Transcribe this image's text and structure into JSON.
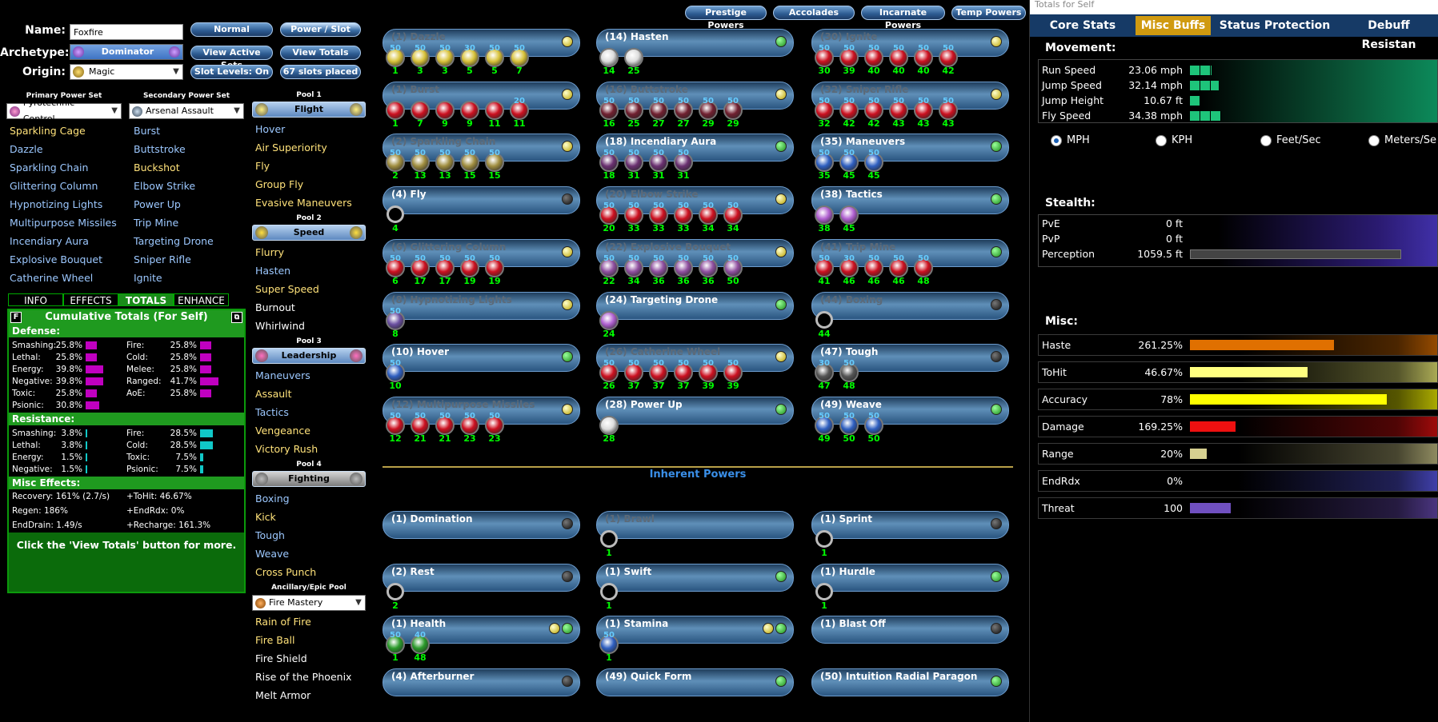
{
  "header": {
    "name_label": "Name:",
    "name_value": "Foxfire",
    "archetype_label": "Archetype:",
    "archetype": "Dominator",
    "origin_label": "Origin:",
    "origin": "Magic"
  },
  "buttons": {
    "normal": "Normal",
    "power_slot": "Power / Slot",
    "view_active_sets": "View Active Sets",
    "view_totals": "View Totals",
    "slot_levels": "Slot Levels: On",
    "slots_placed": "67 slots placed"
  },
  "top_tabs": [
    "Prestige Powers",
    "Accolades",
    "Incarnate Powers",
    "Temp Powers"
  ],
  "primary": {
    "label": "Primary Power Set",
    "value": "Pyrotechnic Control",
    "items": [
      {
        "t": "Sparkling Cage",
        "c": "yel"
      },
      {
        "t": "Dazzle",
        "c": "blue"
      },
      {
        "t": "Sparkling Chain",
        "c": "blue"
      },
      {
        "t": "Glittering Column",
        "c": "blue"
      },
      {
        "t": "Hypnotizing Lights",
        "c": "blue"
      },
      {
        "t": "Multipurpose Missiles",
        "c": "blue"
      },
      {
        "t": "Incendiary Aura",
        "c": "blue"
      },
      {
        "t": "Explosive Bouquet",
        "c": "blue"
      },
      {
        "t": "Catherine Wheel",
        "c": "blue"
      }
    ]
  },
  "secondary": {
    "label": "Secondary Power Set",
    "value": "Arsenal Assault",
    "items": [
      {
        "t": "Burst",
        "c": "blue"
      },
      {
        "t": "Buttstroke",
        "c": "blue"
      },
      {
        "t": "Buckshot",
        "c": "yel"
      },
      {
        "t": "Elbow Strike",
        "c": "blue"
      },
      {
        "t": "Power Up",
        "c": "blue"
      },
      {
        "t": "Trip Mine",
        "c": "blue"
      },
      {
        "t": "Targeting Drone",
        "c": "blue"
      },
      {
        "t": "Sniper Rifle",
        "c": "blue"
      },
      {
        "t": "Ignite",
        "c": "blue"
      }
    ]
  },
  "pools": [
    {
      "label": "Pool 1",
      "name": "Flight",
      "items": [
        {
          "t": "Hover",
          "c": "blue"
        },
        {
          "t": "Air Superiority",
          "c": "yel"
        },
        {
          "t": "Fly",
          "c": "yel"
        },
        {
          "t": "Group Fly",
          "c": "yel"
        },
        {
          "t": "Evasive Maneuvers",
          "c": "yel"
        }
      ]
    },
    {
      "label": "Pool 2",
      "name": "Speed",
      "items": [
        {
          "t": "Flurry",
          "c": "yel"
        },
        {
          "t": "Hasten",
          "c": "blue"
        },
        {
          "t": "Super Speed",
          "c": "yel"
        },
        {
          "t": "Burnout",
          "c": "wht"
        },
        {
          "t": "Whirlwind",
          "c": "wht"
        }
      ]
    },
    {
      "label": "Pool 3",
      "name": "Leadership",
      "items": [
        {
          "t": "Maneuvers",
          "c": "blue"
        },
        {
          "t": "Assault",
          "c": "yel"
        },
        {
          "t": "Tactics",
          "c": "blue"
        },
        {
          "t": "Vengeance",
          "c": "yel"
        },
        {
          "t": "Victory Rush",
          "c": "yel"
        }
      ]
    },
    {
      "label": "Pool 4",
      "name": "Fighting",
      "items": [
        {
          "t": "Boxing",
          "c": "blue"
        },
        {
          "t": "Kick",
          "c": "yel"
        },
        {
          "t": "Tough",
          "c": "blue"
        },
        {
          "t": "Weave",
          "c": "blue"
        },
        {
          "t": "Cross Punch",
          "c": "yel"
        }
      ]
    }
  ],
  "epic": {
    "label": "Ancillary/Epic Pool",
    "value": "Fire Mastery",
    "items": [
      {
        "t": "Rain of Fire",
        "c": "yel"
      },
      {
        "t": "Fire Ball",
        "c": "yel"
      },
      {
        "t": "Fire Shield",
        "c": "wht"
      },
      {
        "t": "Rise of the Phoenix",
        "c": "wht"
      },
      {
        "t": "Melt Armor",
        "c": "wht"
      }
    ]
  },
  "info_tabs": [
    "INFO",
    "EFFECTS",
    "TOTALS",
    "ENHANCE"
  ],
  "totals": {
    "f": "F",
    "title": "Cumulative Totals (For Self)",
    "defense_label": "Defense:",
    "resistance_label": "Resistance:",
    "misc_label": "Misc Effects:",
    "defense": [
      [
        "Smashing:",
        "25.8%",
        0.32
      ],
      [
        "Fire:",
        "25.8%",
        0.32
      ],
      [
        "Lethal:",
        "25.8%",
        0.32
      ],
      [
        "Cold:",
        "25.8%",
        0.32
      ],
      [
        "Energy:",
        "39.8%",
        0.5
      ],
      [
        "Melee:",
        "25.8%",
        0.32
      ],
      [
        "Negative:",
        "39.8%",
        0.5
      ],
      [
        "Ranged:",
        "41.7%",
        0.52
      ],
      [
        "Toxic:",
        "25.8%",
        0.32
      ],
      [
        "AoE:",
        "25.8%",
        0.32
      ],
      [
        "Psionic:",
        "30.8%",
        0.38
      ]
    ],
    "resistance": [
      [
        "Smashing:",
        "3.8%",
        0.04
      ],
      [
        "Fire:",
        "28.5%",
        0.36
      ],
      [
        "Lethal:",
        "3.8%",
        0.04
      ],
      [
        "Cold:",
        "28.5%",
        0.36
      ],
      [
        "Energy:",
        "1.5%",
        0.02
      ],
      [
        "Toxic:",
        "7.5%",
        0.09
      ],
      [
        "Negative:",
        "1.5%",
        0.02
      ],
      [
        "Psionic:",
        "7.5%",
        0.09
      ]
    ],
    "misc": [
      "Recovery: 161% (2.7/s)",
      "+ToHit: 46.67%",
      "Regen: 186%",
      "+EndRdx: 0%",
      "EndDrain: 1.49/s",
      "+Recharge: 161.3%"
    ],
    "footer": "Click the 'View Totals' button for more."
  },
  "inherent_title": "Inherent Powers",
  "slots": [
    {
      "n": "(1) Dazzle",
      "d": "y",
      "dim": true,
      "c": "#d8c23a",
      "e": [
        [
          "50",
          "1"
        ],
        [
          "50",
          "3"
        ],
        [
          "50",
          "3"
        ],
        [
          "30",
          "5"
        ],
        [
          "50",
          "5"
        ],
        [
          "50",
          "7"
        ]
      ]
    },
    {
      "n": "(1) Burst",
      "d": "y",
      "dim": true,
      "c": "#cc1020",
      "e": [
        [
          "",
          "1"
        ],
        [
          "",
          "7"
        ],
        [
          "",
          "9"
        ],
        [
          "",
          "9"
        ],
        [
          "",
          "11"
        ],
        [
          "20",
          "11"
        ]
      ]
    },
    {
      "n": "(2) Sparkling Chain",
      "d": "y",
      "dim": true,
      "c": "#a08e40",
      "e": [
        [
          "50",
          "2"
        ],
        [
          "50",
          "13"
        ],
        [
          "50",
          "13"
        ],
        [
          "50",
          "15"
        ],
        [
          "50",
          "15"
        ]
      ]
    },
    {
      "n": "(4) Fly",
      "d": "b",
      "dim": false,
      "c": "ring",
      "e": [
        [
          "",
          "4"
        ]
      ]
    },
    {
      "n": "(6) Glittering Column",
      "d": "y",
      "dim": true,
      "c": "#cc1020",
      "e": [
        [
          "50",
          "6"
        ],
        [
          "50",
          "17"
        ],
        [
          "50",
          "17"
        ],
        [
          "50",
          "19"
        ],
        [
          "50",
          "19"
        ]
      ]
    },
    {
      "n": "(8) Hypnotizing Lights",
      "d": "y",
      "dim": true,
      "c": "#6a4fa0",
      "e": [
        [
          "50",
          "8"
        ]
      ]
    },
    {
      "n": "(10) Hover",
      "d": "g",
      "dim": false,
      "c": "#2f5fc0",
      "e": [
        [
          "50",
          "10"
        ]
      ]
    },
    {
      "n": "(12) Multipurpose Missiles",
      "d": "y",
      "dim": true,
      "c": "#cc1020",
      "e": [
        [
          "50",
          "12"
        ],
        [
          "50",
          "21"
        ],
        [
          "50",
          "21"
        ],
        [
          "50",
          "23"
        ],
        [
          "50",
          "23"
        ]
      ]
    },
    {
      "n": "(14) Hasten",
      "d": "g",
      "dim": false,
      "c": "#ddd",
      "e": [
        [
          "",
          "14"
        ],
        [
          "",
          "25"
        ]
      ]
    },
    {
      "n": "(16) Buttstroke",
      "d": "y",
      "dim": true,
      "c": "#702030",
      "e": [
        [
          "50",
          "16"
        ],
        [
          "50",
          "25"
        ],
        [
          "50",
          "27"
        ],
        [
          "50",
          "27"
        ],
        [
          "50",
          "29"
        ],
        [
          "50",
          "29"
        ]
      ]
    },
    {
      "n": "(18) Incendiary Aura",
      "d": "g",
      "dim": false,
      "c": "#6a3070",
      "e": [
        [
          "50",
          "18"
        ],
        [
          "50",
          "31"
        ],
        [
          "50",
          "31"
        ],
        [
          "50",
          "31"
        ]
      ]
    },
    {
      "n": "(20) Elbow Strike",
      "d": "y",
      "dim": true,
      "c": "#cc1020",
      "e": [
        [
          "50",
          "20"
        ],
        [
          "50",
          "33"
        ],
        [
          "50",
          "33"
        ],
        [
          "50",
          "33"
        ],
        [
          "50",
          "34"
        ],
        [
          "50",
          "34"
        ]
      ]
    },
    {
      "n": "(22) Explosive Bouquet",
      "d": "y",
      "dim": true,
      "c": "#9050a0",
      "e": [
        [
          "50",
          "22"
        ],
        [
          "50",
          "34"
        ],
        [
          "50",
          "36"
        ],
        [
          "50",
          "36"
        ],
        [
          "50",
          "36"
        ],
        [
          "50",
          "50"
        ]
      ]
    },
    {
      "n": "(24) Targeting Drone",
      "d": "g",
      "dim": false,
      "c": "#b060d0",
      "e": [
        [
          "",
          "24"
        ]
      ]
    },
    {
      "n": "(26) Catherine Wheel",
      "d": "y",
      "dim": true,
      "c": "#cc1020",
      "e": [
        [
          "50",
          "26"
        ],
        [
          "50",
          "37"
        ],
        [
          "50",
          "37"
        ],
        [
          "50",
          "37"
        ],
        [
          "50",
          "39"
        ],
        [
          "50",
          "39"
        ]
      ]
    },
    {
      "n": "(28) Power Up",
      "d": "g",
      "dim": false,
      "c": "#ddd",
      "e": [
        [
          "",
          "28"
        ]
      ]
    },
    {
      "n": "(30) Ignite",
      "d": "y",
      "dim": true,
      "c": "#cc1020",
      "e": [
        [
          "50",
          "30"
        ],
        [
          "50",
          "39"
        ],
        [
          "50",
          "40"
        ],
        [
          "50",
          "40"
        ],
        [
          "50",
          "40"
        ],
        [
          "50",
          "42"
        ]
      ]
    },
    {
      "n": "(32) Sniper Rifle",
      "d": "y",
      "dim": true,
      "c": "#cc1020",
      "e": [
        [
          "50",
          "32"
        ],
        [
          "50",
          "42"
        ],
        [
          "50",
          "42"
        ],
        [
          "50",
          "43"
        ],
        [
          "50",
          "43"
        ],
        [
          "50",
          "43"
        ]
      ]
    },
    {
      "n": "(35) Maneuvers",
      "d": "g",
      "dim": false,
      "c": "#2f5fc0",
      "e": [
        [
          "50",
          "35"
        ],
        [
          "50",
          "45"
        ],
        [
          "50",
          "45"
        ]
      ]
    },
    {
      "n": "(38) Tactics",
      "d": "g",
      "dim": false,
      "c": "#b060d0",
      "e": [
        [
          "",
          "38"
        ],
        [
          "",
          "45"
        ]
      ]
    },
    {
      "n": "(41) Trip Mine",
      "d": "g",
      "dim": true,
      "c": "#cc1020",
      "e": [
        [
          "50",
          "41"
        ],
        [
          "30",
          "46"
        ],
        [
          "50",
          "46"
        ],
        [
          "50",
          "46"
        ],
        [
          "50",
          "48"
        ]
      ]
    },
    {
      "n": "(44) Boxing",
      "d": "b",
      "dim": true,
      "c": "ring",
      "e": [
        [
          "",
          "44"
        ]
      ]
    },
    {
      "n": "(47) Tough",
      "d": "b",
      "dim": false,
      "c": "#555",
      "e": [
        [
          "30",
          "47"
        ],
        [
          "50",
          "48"
        ]
      ]
    },
    {
      "n": "(49) Weave",
      "d": "g",
      "dim": false,
      "c": "#2f5fc0",
      "e": [
        [
          "50",
          "49"
        ],
        [
          "50",
          "50"
        ],
        [
          "50",
          "50"
        ]
      ]
    }
  ],
  "inherent": [
    {
      "n": "(1) Domination",
      "d": "b",
      "e": []
    },
    {
      "n": "(2) Rest",
      "d": "b",
      "e": [
        [
          "",
          "2"
        ]
      ]
    },
    {
      "n": "(1) Health",
      "d": "yg",
      "e": [
        [
          "50",
          "1"
        ],
        [
          "40",
          "48"
        ]
      ]
    },
    {
      "n": "(4) Afterburner",
      "d": "b",
      "e": []
    },
    {
      "n": "(1) Brawl",
      "d": "none",
      "dim": true,
      "e": [
        [
          "",
          "1"
        ]
      ]
    },
    {
      "n": "(1) Swift",
      "d": "g",
      "e": [
        [
          "",
          "1"
        ]
      ]
    },
    {
      "n": "(1) Stamina",
      "d": "yg",
      "e": [
        [
          "50",
          "1"
        ]
      ]
    },
    {
      "n": "(49) Quick Form",
      "d": "g",
      "e": []
    },
    {
      "n": "(1) Sprint",
      "d": "b",
      "e": [
        [
          "",
          "1"
        ]
      ]
    },
    {
      "n": "(1) Hurdle",
      "d": "g",
      "e": [
        [
          "",
          "1"
        ]
      ]
    },
    {
      "n": "(1) Blast Off",
      "d": "b",
      "e": []
    },
    {
      "n": "(50) Intuition Radial Paragon",
      "d": "g",
      "e": []
    }
  ],
  "right": {
    "window_title": "Totals for Self",
    "tabs": [
      "Core Stats",
      "Misc Buffs",
      "Status Protection",
      "Debuff Resistan"
    ],
    "movement_label": "Movement:",
    "movement": [
      [
        "Run Speed",
        "23.06 mph",
        0.09
      ],
      [
        "Jump Speed",
        "32.14 mph",
        0.12
      ],
      [
        "Jump Height",
        "10.67 ft",
        0.04
      ],
      [
        "Fly Speed",
        "34.38 mph",
        0.13
      ]
    ],
    "units": [
      "MPH",
      "KPH",
      "Feet/Sec",
      "Meters/Se"
    ],
    "stealth_label": "Stealth:",
    "stealth": [
      [
        "PvE",
        "0 ft",
        0
      ],
      [
        "PvP",
        "0 ft",
        0
      ],
      [
        "Perception",
        "1059.5 ft",
        0.88
      ]
    ],
    "misc_label": "Misc:",
    "misc": [
      [
        "Haste",
        "261.25%",
        0.6,
        "#e07000"
      ],
      [
        "ToHit",
        "46.67%",
        0.49,
        "#ffff80"
      ],
      [
        "Accuracy",
        "78%",
        0.82,
        "#ffff00"
      ],
      [
        "Damage",
        "169.25%",
        0.19,
        "#ee1010"
      ],
      [
        "Range",
        "20%",
        0.07,
        "#d6d090"
      ],
      [
        "EndRdx",
        "0%",
        0,
        "#6060ff"
      ],
      [
        "Threat",
        "100",
        0.17,
        "#7050c0"
      ]
    ]
  }
}
